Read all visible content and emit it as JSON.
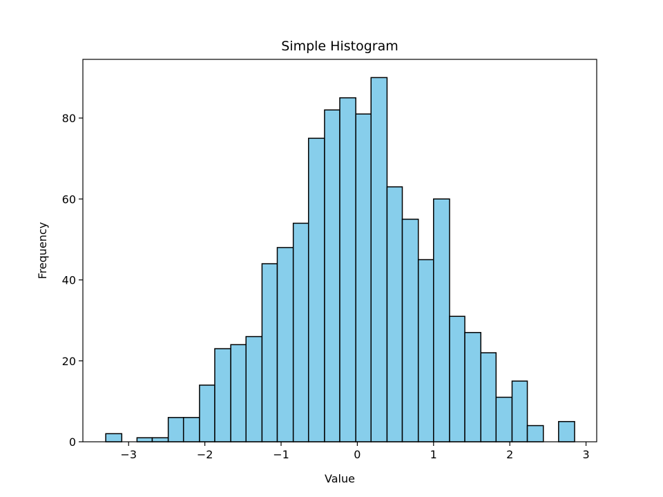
{
  "chart_data": {
    "type": "bar",
    "title": "Simple Histogram",
    "xlabel": "Value",
    "ylabel": "Frequency",
    "bar_color": "#87ceeb",
    "edge_color": "#000000",
    "bins": [
      {
        "x0": -3.3,
        "x1": -3.09,
        "count": 2
      },
      {
        "x0": -3.09,
        "x1": -2.89,
        "count": 0
      },
      {
        "x0": -2.89,
        "x1": -2.69,
        "count": 1
      },
      {
        "x0": -2.69,
        "x1": -2.48,
        "count": 1
      },
      {
        "x0": -2.48,
        "x1": -2.28,
        "count": 6
      },
      {
        "x0": -2.28,
        "x1": -2.07,
        "count": 6
      },
      {
        "x0": -2.07,
        "x1": -1.87,
        "count": 14
      },
      {
        "x0": -1.87,
        "x1": -1.66,
        "count": 23
      },
      {
        "x0": -1.66,
        "x1": -1.46,
        "count": 24
      },
      {
        "x0": -1.46,
        "x1": -1.25,
        "count": 26
      },
      {
        "x0": -1.25,
        "x1": -1.05,
        "count": 44
      },
      {
        "x0": -1.05,
        "x1": -0.84,
        "count": 48
      },
      {
        "x0": -0.84,
        "x1": -0.64,
        "count": 54
      },
      {
        "x0": -0.64,
        "x1": -0.43,
        "count": 75
      },
      {
        "x0": -0.43,
        "x1": -0.23,
        "count": 82
      },
      {
        "x0": -0.23,
        "x1": -0.02,
        "count": 85
      },
      {
        "x0": -0.02,
        "x1": 0.18,
        "count": 81
      },
      {
        "x0": 0.18,
        "x1": 0.39,
        "count": 90
      },
      {
        "x0": 0.39,
        "x1": 0.59,
        "count": 63
      },
      {
        "x0": 0.59,
        "x1": 0.8,
        "count": 55
      },
      {
        "x0": 0.8,
        "x1": 1.0,
        "count": 45
      },
      {
        "x0": 1.0,
        "x1": 1.21,
        "count": 60
      },
      {
        "x0": 1.21,
        "x1": 1.41,
        "count": 31
      },
      {
        "x0": 1.41,
        "x1": 1.62,
        "count": 27
      },
      {
        "x0": 1.62,
        "x1": 1.82,
        "count": 22
      },
      {
        "x0": 1.82,
        "x1": 2.03,
        "count": 11
      },
      {
        "x0": 2.03,
        "x1": 2.23,
        "count": 15
      },
      {
        "x0": 2.23,
        "x1": 2.44,
        "count": 4
      },
      {
        "x0": 2.44,
        "x1": 2.64,
        "count": 0
      },
      {
        "x0": 2.64,
        "x1": 2.85,
        "count": 5
      }
    ],
    "xlim": [
      -3.6,
      3.14
    ],
    "ylim": [
      0,
      94.5
    ],
    "xticks": [
      -3,
      -2,
      -1,
      0,
      1,
      2,
      3
    ],
    "xtick_labels": [
      "−3",
      "−2",
      "−1",
      "0",
      "1",
      "2",
      "3"
    ],
    "yticks": [
      0,
      20,
      40,
      60,
      80
    ],
    "ytick_labels": [
      "0",
      "20",
      "40",
      "60",
      "80"
    ],
    "grid": false,
    "legend": "none"
  }
}
